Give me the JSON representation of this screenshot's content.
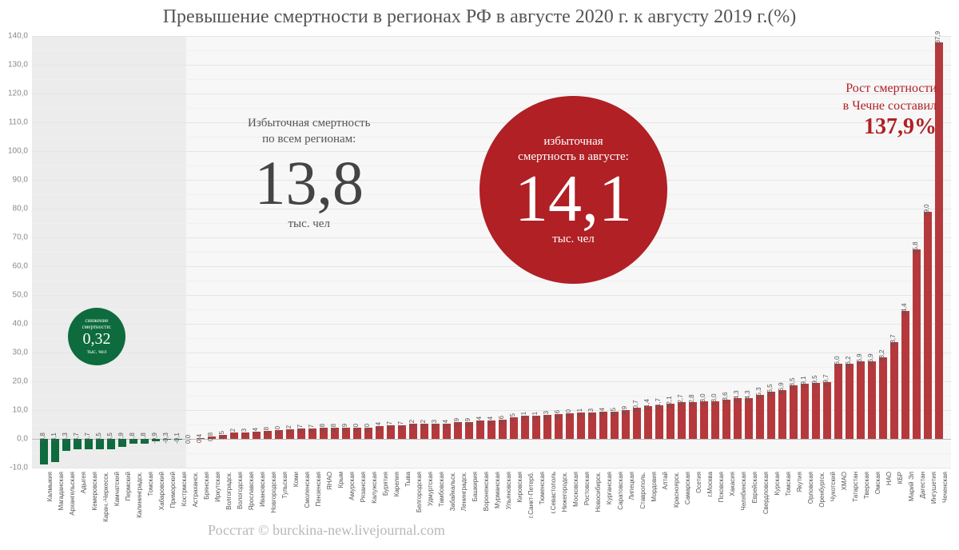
{
  "title": "Превышение смертности в регионах РФ в августе 2020 г. к августу 2019 г.(%)",
  "credit": "Росстат © burckina-new.livejournal.com",
  "y_axis": {
    "min": -10,
    "max": 140,
    "step": 10,
    "minor_step": 5
  },
  "colors": {
    "bar_neg": "#0d6b3d",
    "bar_pos": "#b5393c",
    "grid": "#e5e5e5",
    "bg": "#f7f7f7",
    "neg_band": "#ececec"
  },
  "green_circle": {
    "line1": "снижение",
    "line2": "смертности:",
    "value": "0,32",
    "unit": "тыс. чел"
  },
  "grey_block": {
    "line1": "Избыточная смертность",
    "line2": "по всем регионам:",
    "value": "13,8",
    "unit": "тыс. чел"
  },
  "red_circle": {
    "line1": "избыточная",
    "line2": "смертность в августе:",
    "value": "14,1",
    "unit": "тыс. чел"
  },
  "callout": {
    "line1": "Рост смертности",
    "line2": "в Чечне составил",
    "value": "137,9%"
  },
  "bars": [
    {
      "name": "Калмыкия",
      "v": -8.8
    },
    {
      "name": "Магаданская",
      "v": -8.1
    },
    {
      "name": "Архангельская",
      "v": -4.3
    },
    {
      "name": "Адыгея",
      "v": -3.7
    },
    {
      "name": "Кемеровская",
      "v": -3.7
    },
    {
      "name": "Карач.-Черкесск.",
      "v": -3.5
    },
    {
      "name": "Камчатский",
      "v": -3.5
    },
    {
      "name": "Пермский",
      "v": -2.9
    },
    {
      "name": "Калининградск.",
      "v": -1.8
    },
    {
      "name": "Томская",
      "v": -1.8
    },
    {
      "name": "Хабаровский",
      "v": -0.9
    },
    {
      "name": "Приморский",
      "v": -0.3
    },
    {
      "name": "Кострмская",
      "v": -0.1
    },
    {
      "name": "Астраханск.",
      "v": 0.0
    },
    {
      "name": "Брянская",
      "v": 0.4
    },
    {
      "name": "Иркутская",
      "v": 0.8
    },
    {
      "name": "Волгоградск.",
      "v": 1.5
    },
    {
      "name": "Вологодская",
      "v": 2.2
    },
    {
      "name": "Ярославская",
      "v": 2.3
    },
    {
      "name": "Ивановская",
      "v": 2.4
    },
    {
      "name": "Новгородская",
      "v": 2.8
    },
    {
      "name": "Тульская",
      "v": 3.0
    },
    {
      "name": "Коми",
      "v": 3.2
    },
    {
      "name": "Смоленская",
      "v": 3.7
    },
    {
      "name": "Пензенская",
      "v": 3.7
    },
    {
      "name": "ЯНАО",
      "v": 3.8
    },
    {
      "name": "Крым",
      "v": 3.8
    },
    {
      "name": "Амурская",
      "v": 3.9
    },
    {
      "name": "Рязанская",
      "v": 4.0
    },
    {
      "name": "Калужская",
      "v": 4.0
    },
    {
      "name": "Бурятия",
      "v": 4.4
    },
    {
      "name": "Карелия",
      "v": 4.7
    },
    {
      "name": "Тыва",
      "v": 4.7
    },
    {
      "name": "Белгородская",
      "v": 5.2
    },
    {
      "name": "Удмуртская",
      "v": 5.2
    },
    {
      "name": "Тамбовская",
      "v": 5.3
    },
    {
      "name": "Забайкальск.",
      "v": 5.4
    },
    {
      "name": "Ленинградск.",
      "v": 5.9
    },
    {
      "name": "Башкирия",
      "v": 5.9
    },
    {
      "name": "Воронежская",
      "v": 6.4
    },
    {
      "name": "Мурманская",
      "v": 6.4
    },
    {
      "name": "Ульяновская",
      "v": 6.6
    },
    {
      "name": "Кировская",
      "v": 7.5
    },
    {
      "name": "г.Санкт-Петерб.",
      "v": 8.1
    },
    {
      "name": "Тюменская",
      "v": 8.1
    },
    {
      "name": "г.Севастополь",
      "v": 8.3
    },
    {
      "name": "Нижегородск.",
      "v": 8.6
    },
    {
      "name": "Московская",
      "v": 9.0
    },
    {
      "name": "Ростовская",
      "v": 9.1
    },
    {
      "name": "Новосибирск.",
      "v": 9.3
    },
    {
      "name": "Курганская",
      "v": 9.4
    },
    {
      "name": "Саратовская",
      "v": 9.5
    },
    {
      "name": "Липецкая",
      "v": 9.9
    },
    {
      "name": "Ставрополь.",
      "v": 10.7
    },
    {
      "name": "Мордовия",
      "v": 11.4
    },
    {
      "name": "Алтай",
      "v": 11.7
    },
    {
      "name": "Красноярск.",
      "v": 12.1
    },
    {
      "name": "Самарская",
      "v": 12.7
    },
    {
      "name": "Осетия",
      "v": 12.8
    },
    {
      "name": "г.Москва",
      "v": 13.0
    },
    {
      "name": "Псковская",
      "v": 13.0
    },
    {
      "name": "Хакасия",
      "v": 13.6
    },
    {
      "name": "Челябинская",
      "v": 14.3
    },
    {
      "name": "Еврейская",
      "v": 14.3
    },
    {
      "name": "Свердловская",
      "v": 15.3
    },
    {
      "name": "Курская",
      "v": 16.5
    },
    {
      "name": "Томская",
      "v": 16.9
    },
    {
      "name": "Якутия",
      "v": 18.5
    },
    {
      "name": "Орловская",
      "v": 19.1
    },
    {
      "name": "Оренбургск.",
      "v": 19.5
    },
    {
      "name": "Чукотский",
      "v": 19.7
    },
    {
      "name": "ХМАО",
      "v": 26.0
    },
    {
      "name": "Татарстан",
      "v": 26.2
    },
    {
      "name": "Тверская",
      "v": 26.9
    },
    {
      "name": "Омская",
      "v": 26.9
    },
    {
      "name": "НАО",
      "v": 28.2
    },
    {
      "name": "КБР",
      "v": 33.7
    },
    {
      "name": "Марий Эл",
      "v": 44.4
    },
    {
      "name": "Дагестан",
      "v": 65.8
    },
    {
      "name": "Ингушетия",
      "v": 79.0
    },
    {
      "name": "Чеченская",
      "v": 137.9
    }
  ]
}
